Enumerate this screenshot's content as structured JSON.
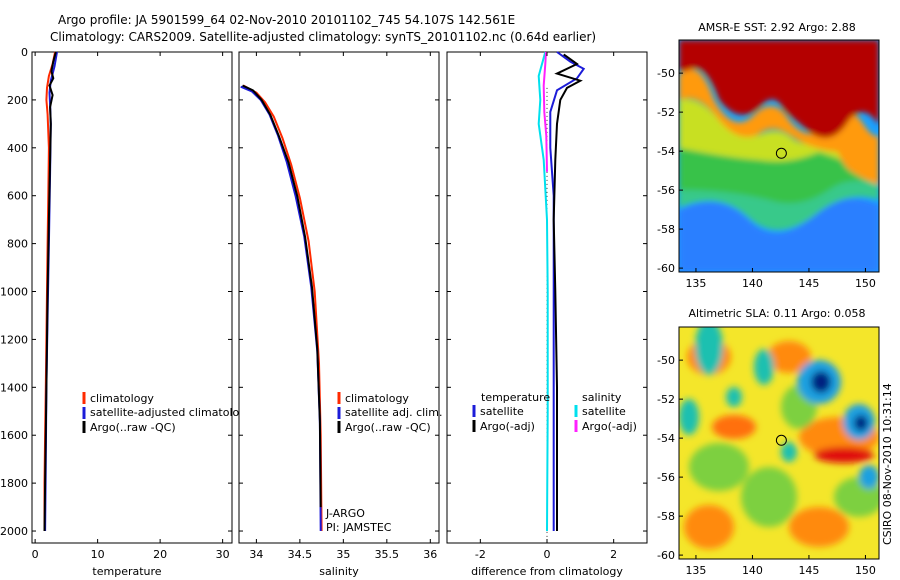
{
  "header": {
    "line1": "Argo profile: JA 5901599_64 02-Nov-2010 20101102_745 54.107S 142.561E",
    "line2": "Climatology: CARS2009. Satellite-adjusted climatology: synTS_20101102.nc (0.64d earlier)"
  },
  "credit": "CSIRO 08-Nov-2010 10:31:14",
  "colors": {
    "climatology": "#ff2a00",
    "satellite": "#1c1cd8",
    "argo": "#000000",
    "salinity_satellite": "#00e0ee",
    "salinity_argo": "#ff20ff",
    "land_dark_red": "#aa0000"
  },
  "chart_data": [
    {
      "id": "temperature",
      "type": "line",
      "xlabel": "temperature",
      "xlim": [
        -0.5,
        31.5
      ],
      "xticks": [
        0,
        10,
        20,
        30
      ],
      "ylim": [
        2050,
        0
      ],
      "yticks": [
        0,
        200,
        400,
        600,
        800,
        1000,
        1200,
        1400,
        1600,
        1800,
        2000
      ],
      "legend": [
        "climatology",
        "satellite-adjusted climatology",
        "Argo(..raw -QC)"
      ],
      "series": [
        {
          "name": "climatology",
          "color": "climatology",
          "points": [
            [
              3.2,
              0
            ],
            [
              2.8,
              50
            ],
            [
              2.2,
              100
            ],
            [
              1.9,
              150
            ],
            [
              1.8,
              200
            ],
            [
              2.0,
              260
            ],
            [
              2.2,
              400
            ],
            [
              2.1,
              600
            ],
            [
              2.0,
              800
            ],
            [
              1.9,
              1000
            ],
            [
              1.8,
              1200
            ],
            [
              1.7,
              1400
            ],
            [
              1.6,
              1600
            ],
            [
              1.5,
              1800
            ],
            [
              1.5,
              2000
            ]
          ]
        },
        {
          "name": "satellite-adjusted climatology",
          "color": "satellite",
          "points": [
            [
              3.5,
              0
            ],
            [
              3.1,
              60
            ],
            [
              2.5,
              120
            ],
            [
              2.3,
              170
            ],
            [
              2.4,
              220
            ],
            [
              2.5,
              300
            ],
            [
              2.4,
              500
            ],
            [
              2.2,
              800
            ],
            [
              2.0,
              1100
            ],
            [
              1.8,
              1400
            ],
            [
              1.7,
              1700
            ],
            [
              1.6,
              2000
            ]
          ]
        },
        {
          "name": "Argo(..raw -QC)",
          "color": "argo",
          "points": [
            [
              3.3,
              0
            ],
            [
              2.9,
              40
            ],
            [
              2.6,
              80
            ],
            [
              2.9,
              110
            ],
            [
              2.3,
              140
            ],
            [
              2.8,
              180
            ],
            [
              2.4,
              230
            ],
            [
              2.5,
              300
            ],
            [
              2.4,
              450
            ],
            [
              2.2,
              700
            ],
            [
              2.0,
              1000
            ],
            [
              1.8,
              1400
            ],
            [
              1.6,
              1800
            ],
            [
              1.5,
              2000
            ]
          ]
        }
      ]
    },
    {
      "id": "salinity",
      "type": "line",
      "xlabel": "salinity",
      "xlim": [
        33.8,
        36.1
      ],
      "xticks": [
        34,
        34.5,
        35,
        35.5,
        36
      ],
      "ylim": [
        2050,
        0
      ],
      "legend": [
        "climatology",
        "satellite adj. clim.",
        "Argo(..raw -QC)"
      ],
      "annotation": [
        "J-ARGO",
        "PI: JAMSTEC"
      ],
      "series": [
        {
          "name": "climatology",
          "color": "climatology",
          "points": [
            [
              33.85,
              140
            ],
            [
              34.0,
              170
            ],
            [
              34.1,
              210
            ],
            [
              34.2,
              270
            ],
            [
              34.3,
              360
            ],
            [
              34.4,
              470
            ],
            [
              34.5,
              610
            ],
            [
              34.6,
              790
            ],
            [
              34.67,
              1000
            ],
            [
              34.72,
              1300
            ],
            [
              34.74,
              1600
            ],
            [
              34.75,
              2000
            ]
          ]
        },
        {
          "name": "satellite adj. clim.",
          "color": "satellite",
          "points": [
            [
              33.82,
              145
            ],
            [
              33.95,
              165
            ],
            [
              34.05,
              200
            ],
            [
              34.15,
              260
            ],
            [
              34.25,
              350
            ],
            [
              34.35,
              460
            ],
            [
              34.45,
              600
            ],
            [
              34.55,
              770
            ],
            [
              34.63,
              980
            ],
            [
              34.7,
              1250
            ],
            [
              34.73,
              1550
            ],
            [
              34.74,
              2000
            ]
          ]
        },
        {
          "name": "Argo(..raw -QC)",
          "color": "argo",
          "points": [
            [
              33.84,
              140
            ],
            [
              33.96,
              160
            ],
            [
              34.06,
              200
            ],
            [
              34.16,
              262
            ],
            [
              34.26,
              352
            ],
            [
              34.37,
              462
            ],
            [
              34.47,
              602
            ],
            [
              34.56,
              772
            ],
            [
              34.64,
              982
            ],
            [
              34.7,
              1240
            ],
            [
              34.73,
              1540
            ],
            [
              34.74,
              1900
            ]
          ]
        }
      ]
    },
    {
      "id": "difference",
      "type": "line",
      "xlabel": "difference from climatology",
      "xlim": [
        -3,
        3
      ],
      "xticks": [
        -2,
        0,
        2
      ],
      "ylim": [
        2050,
        0
      ],
      "legend": {
        "temperature_header": "temperature",
        "salinity_header": "salinity",
        "entries": [
          {
            "group": "temperature",
            "label": "satellite",
            "color": "satellite"
          },
          {
            "group": "temperature",
            "label": "Argo(-adj)",
            "color": "argo"
          },
          {
            "group": "salinity",
            "label": "satellite",
            "color": "salinity_satellite"
          },
          {
            "group": "salinity",
            "label": "Argo(-adj)",
            "color": "salinity_argo"
          }
        ]
      },
      "series": [
        {
          "name": "temperature satellite",
          "color": "satellite",
          "points": [
            [
              0.3,
              0
            ],
            [
              0.7,
              40
            ],
            [
              1.1,
              70
            ],
            [
              0.9,
              110
            ],
            [
              0.3,
              160
            ],
            [
              0.1,
              250
            ],
            [
              0.1,
              400
            ],
            [
              0.2,
              600
            ],
            [
              0.2,
              1000
            ],
            [
              0.2,
              1500
            ],
            [
              0.2,
              2000
            ]
          ]
        },
        {
          "name": "temperature Argo(-adj)",
          "color": "argo",
          "points": [
            [
              0.5,
              10
            ],
            [
              0.9,
              50
            ],
            [
              0.3,
              90
            ],
            [
              1.0,
              120
            ],
            [
              0.6,
              150
            ],
            [
              0.4,
              200
            ],
            [
              0.3,
              300
            ],
            [
              0.25,
              450
            ],
            [
              0.2,
              700
            ],
            [
              0.25,
              1000
            ],
            [
              0.3,
              1400
            ],
            [
              0.3,
              1800
            ],
            [
              0.3,
              2000
            ]
          ]
        },
        {
          "name": "salinity satellite",
          "color": "salinity_satellite",
          "points": [
            [
              -0.05,
              0
            ],
            [
              -0.25,
              100
            ],
            [
              -0.2,
              200
            ],
            [
              -0.25,
              300
            ],
            [
              -0.1,
              450
            ],
            [
              0.0,
              700
            ],
            [
              0.02,
              1000
            ],
            [
              0.02,
              1500
            ],
            [
              0.0,
              2000
            ]
          ]
        },
        {
          "name": "salinity Argo(-adj)",
          "color": "salinity_argo",
          "points": [
            [
              -0.03,
              0
            ],
            [
              -0.05,
              50
            ],
            [
              -0.1,
              140
            ],
            [
              -0.08,
              250
            ],
            [
              -0.02,
              350
            ],
            [
              0.0,
              500
            ]
          ]
        }
      ]
    },
    {
      "id": "sst_map",
      "type": "heatmap",
      "title": "AMSR-E SST: 2.92 Argo: 2.88",
      "xlim": [
        133.5,
        151.2
      ],
      "xticks": [
        135,
        140,
        145,
        150
      ],
      "ylim": [
        -60.2,
        -48.3
      ],
      "yticks": [
        -50,
        -52,
        -54,
        -56,
        -58,
        -60
      ],
      "marker": {
        "lon": 142.56,
        "lat": -54.11
      }
    },
    {
      "id": "sla_map",
      "type": "heatmap",
      "title": "Altimetric SLA: 0.11 Argo: 0.058",
      "xlim": [
        133.5,
        151.2
      ],
      "xticks": [
        135,
        140,
        145,
        150
      ],
      "ylim": [
        -60.2,
        -48.3
      ],
      "yticks": [
        -50,
        -52,
        -54,
        -56,
        -58,
        -60
      ],
      "marker": {
        "lon": 142.56,
        "lat": -54.11
      }
    }
  ]
}
